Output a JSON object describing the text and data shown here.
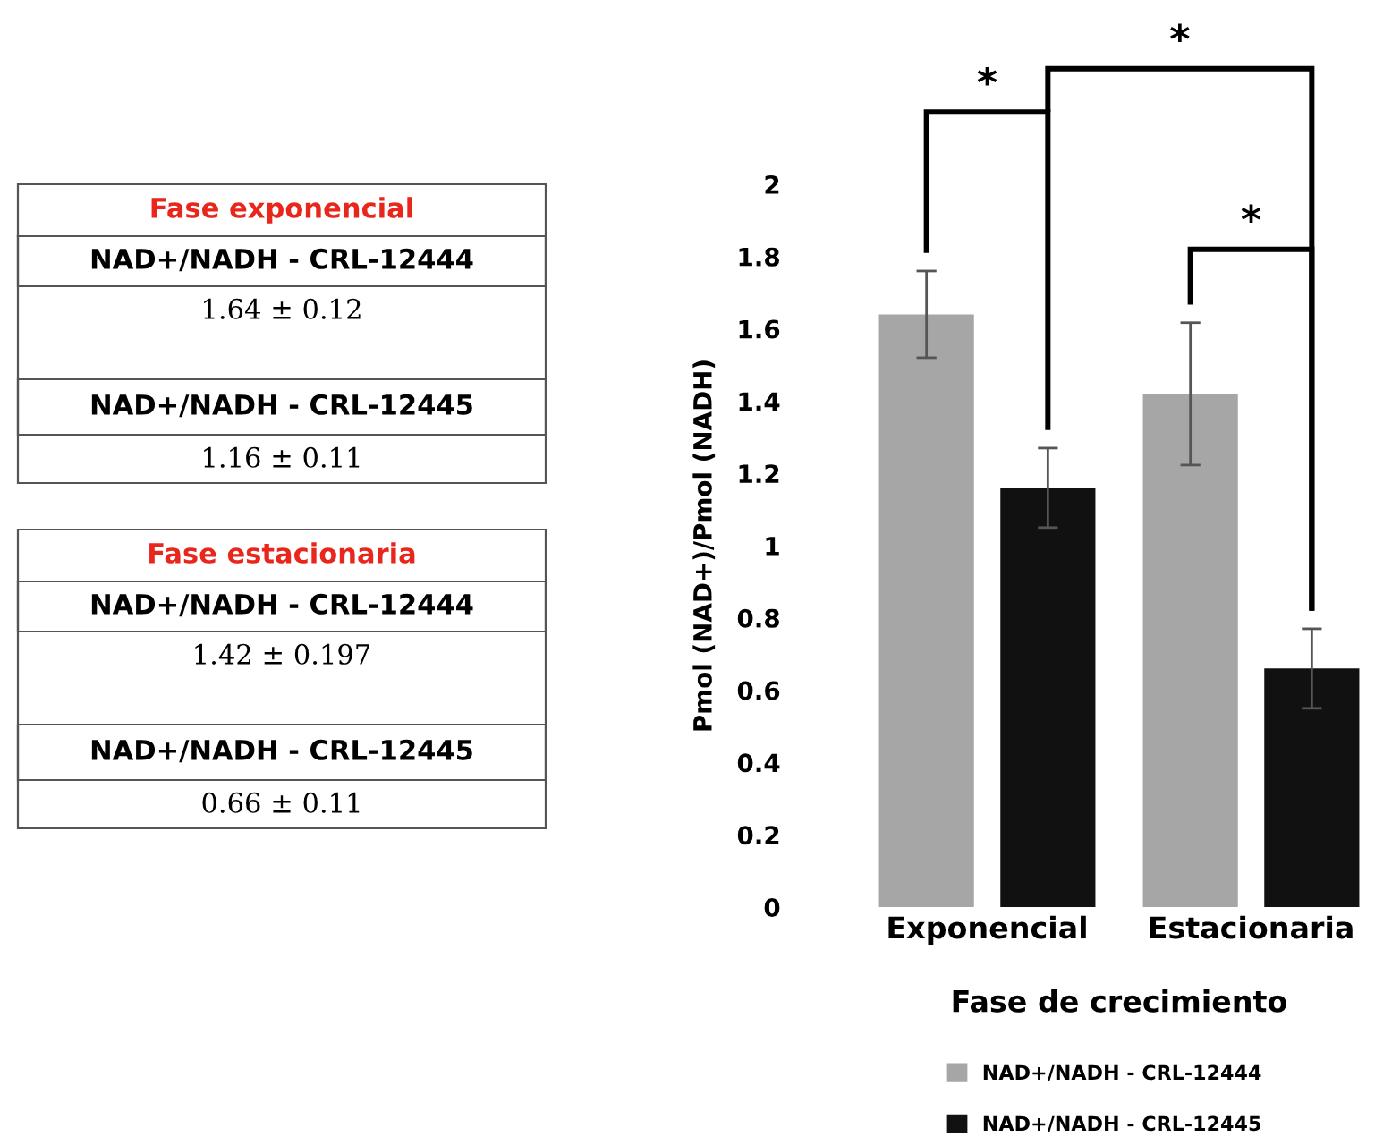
{
  "chart_data": {
    "type": "bar",
    "xlabel": "Fase de crecimiento",
    "ylabel": "Pmol (NAD+)/Pmol (NADH)",
    "categories": [
      "Exponencial",
      "Estacionaria"
    ],
    "series": [
      {
        "name": "NAD+/NADH - CRL-12444",
        "color": "#a6a6a6",
        "values": [
          1.64,
          1.42
        ],
        "errors": [
          0.12,
          0.197
        ]
      },
      {
        "name": "NAD+/NADH - CRL-12445",
        "color": "#111111",
        "values": [
          1.16,
          0.66
        ],
        "errors": [
          0.11,
          0.11
        ]
      }
    ],
    "ylim": [
      0,
      2
    ],
    "yticks": [
      0,
      0.2,
      0.4,
      0.6,
      0.8,
      1,
      1.2,
      1.4,
      1.6,
      1.8,
      2
    ],
    "grid": false,
    "legend": "bottom",
    "annotations": [
      "*",
      "*",
      "*",
      "Fase exponencial",
      "NAD+/NADH - CRL-12444",
      "1.64 ± 0.12",
      "NAD+/NADH - CRL-12445",
      "1.16 ± 0.11",
      "Fase estacionaria",
      "NAD+/NADH - CRL-12444",
      "1.42 ± 0.197",
      "NAD+/NADH - CRL-12445",
      "0.66 ± 0.11"
    ]
  }
}
